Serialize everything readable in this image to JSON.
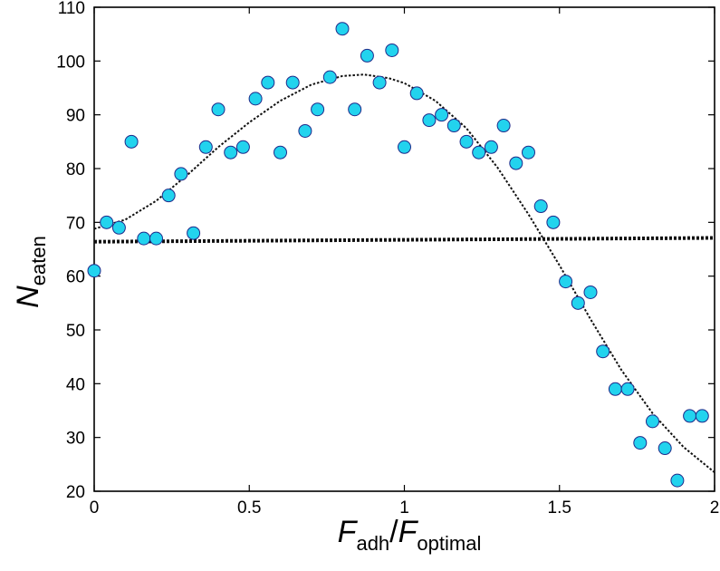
{
  "chart_data": {
    "type": "scatter",
    "xlabel": {
      "base": "F",
      "sub": "adh",
      "sep": "/",
      "base2": "F",
      "sub2": "optimal"
    },
    "ylabel": {
      "base": "N",
      "sub": "eaten"
    },
    "xlim": [
      0,
      2
    ],
    "ylim": [
      20,
      110
    ],
    "xticks": [
      0,
      0.5,
      1,
      1.5,
      2
    ],
    "xtick_labels": [
      "0",
      "0.5",
      "1",
      "1.5",
      "2"
    ],
    "yticks": [
      20,
      30,
      40,
      50,
      60,
      70,
      80,
      90,
      100,
      110
    ],
    "ytick_labels": [
      "20",
      "30",
      "40",
      "50",
      "60",
      "70",
      "80",
      "90",
      "100",
      "110"
    ],
    "grid": false,
    "legend": "none",
    "marker_color": "#22d3ee",
    "marker_edge_color": "#1f2a8a",
    "series": [
      {
        "type": "scatter",
        "x": [
          0.0,
          0.04,
          0.08,
          0.12,
          0.16,
          0.2,
          0.24,
          0.28,
          0.32,
          0.36,
          0.4,
          0.44,
          0.48,
          0.52,
          0.56,
          0.6,
          0.64,
          0.68,
          0.72,
          0.76,
          0.8,
          0.84,
          0.88,
          0.92,
          0.96,
          1.0,
          1.04,
          1.08,
          1.12,
          1.16,
          1.2,
          1.24,
          1.28,
          1.32,
          1.36,
          1.4,
          1.44,
          1.48,
          1.52,
          1.56,
          1.6,
          1.64,
          1.68,
          1.72,
          1.76,
          1.8,
          1.84,
          1.88,
          1.92,
          1.96
        ],
        "y": [
          61,
          70,
          69,
          85,
          67,
          67,
          75,
          79,
          68,
          84,
          91,
          83,
          84,
          93,
          96,
          83,
          96,
          87,
          91,
          97,
          106,
          91,
          101,
          96,
          102,
          84,
          94,
          89,
          90,
          88,
          85,
          83,
          84,
          88,
          81,
          83,
          73,
          70,
          59,
          55,
          57,
          46,
          39,
          39,
          29,
          33,
          28,
          22,
          34,
          34
        ]
      },
      {
        "type": "line",
        "style": "dotted",
        "x": [
          0.0,
          0.1,
          0.2,
          0.3,
          0.4,
          0.5,
          0.6,
          0.7,
          0.8,
          0.87,
          0.95,
          1.0,
          1.1,
          1.2,
          1.3,
          1.4,
          1.5,
          1.6,
          1.7,
          1.8,
          1.9,
          2.0
        ],
        "y": [
          68.8,
          70.5,
          74.0,
          78.8,
          84.0,
          88.6,
          92.6,
          95.6,
          97.2,
          97.5,
          96.8,
          95.9,
          92.6,
          87.5,
          80.2,
          71.5,
          62.0,
          52.0,
          42.5,
          34.5,
          28.2,
          23.5
        ]
      },
      {
        "type": "line",
        "style": "thick-dotted",
        "x": [
          0.0,
          2.0
        ],
        "y": [
          66.4,
          67.1
        ]
      }
    ]
  }
}
